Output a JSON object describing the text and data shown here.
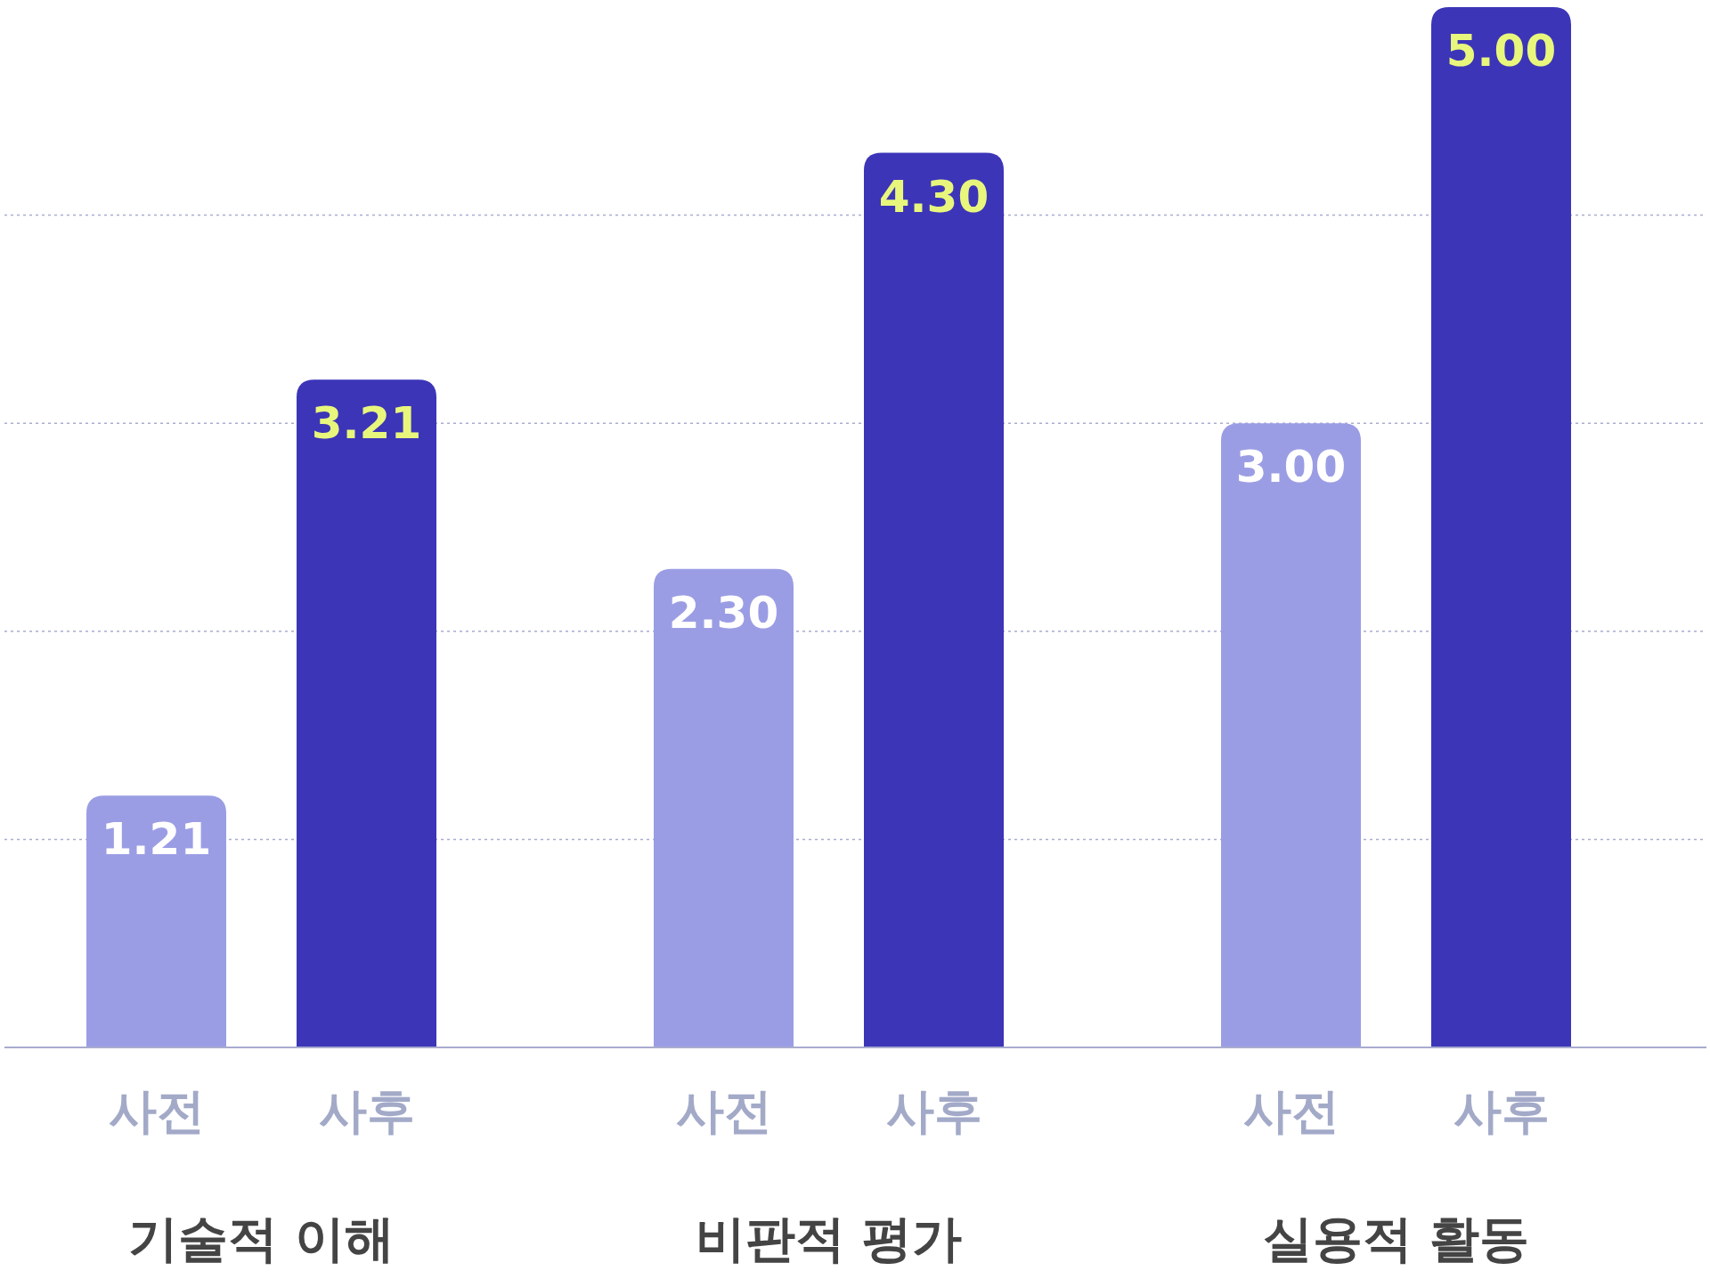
{
  "chart_data": {
    "type": "bar",
    "categories": [
      "기술적 이해",
      "비판적 평가",
      "실용적 활동"
    ],
    "series": [
      {
        "name": "사전",
        "color": "#9b9de4",
        "values": [
          1.21,
          2.3,
          3.0
        ],
        "value_labels": [
          "1.21",
          "2.30",
          "3.00"
        ]
      },
      {
        "name": "사후",
        "color": "#3c35b8",
        "values": [
          3.21,
          4.3,
          5.0
        ],
        "value_labels": [
          "3.21",
          "4.30",
          "5.00"
        ]
      }
    ],
    "ylim": [
      0,
      5
    ],
    "yticks": [
      {
        "value": 1,
        "label": null
      },
      {
        "value": 2,
        "label": null
      },
      {
        "value": 3,
        "label": null
      },
      {
        "value": 4,
        "label": null
      }
    ],
    "grid": "y",
    "tick_labels": "x"
  }
}
